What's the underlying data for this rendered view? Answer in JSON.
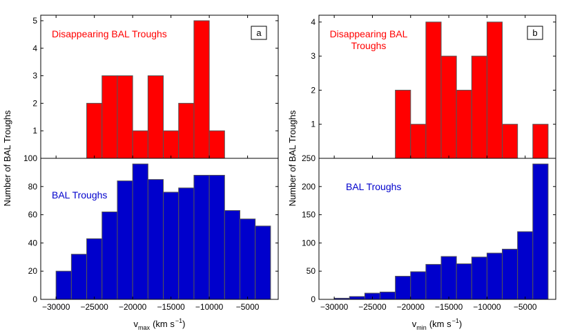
{
  "colors": {
    "top_bars": "#ff0000",
    "bottom_bars": "#0000cc",
    "top_text": "#ff0000",
    "bottom_text": "#0000cc",
    "bar_edge": "#555555"
  },
  "chart_data": [
    {
      "id": "a",
      "type": "bar",
      "panel_letter": "a",
      "bin_edges": [
        -30000,
        -28000,
        -26000,
        -24000,
        -22000,
        -20000,
        -18000,
        -16000,
        -14000,
        -12000,
        -10000,
        -8000,
        -6000,
        -4000,
        -2000
      ],
      "xlim": [
        -32000,
        -1000
      ],
      "xticks": [
        -30000,
        -25000,
        -20000,
        -15000,
        -10000,
        -5000
      ],
      "xlabel_main": "v",
      "xlabel_sub": "max",
      "xlabel_unit": "(km s",
      "xlabel_sup": "−1",
      "xlabel_close": ")",
      "ylabel": "Number of BAL Troughs",
      "top": {
        "annotation_lines": [
          "Disappearing BAL Troughs"
        ],
        "ylim": [
          0,
          5.2
        ],
        "yticks": [
          1,
          2,
          3,
          4,
          5
        ],
        "values": [
          0,
          0,
          2,
          3,
          3,
          1,
          3,
          1,
          2,
          5,
          1,
          0,
          0,
          0
        ]
      },
      "bottom": {
        "annotation_lines": [
          "BAL Troughs"
        ],
        "ylim": [
          0,
          100
        ],
        "yticks": [
          0,
          20,
          40,
          60,
          80,
          100
        ],
        "values": [
          20,
          32,
          43,
          62,
          84,
          96,
          85,
          76,
          79,
          88,
          88,
          63,
          57,
          52
        ]
      }
    },
    {
      "id": "b",
      "type": "bar",
      "panel_letter": "b",
      "bin_edges": [
        -30000,
        -28000,
        -26000,
        -24000,
        -22000,
        -20000,
        -18000,
        -16000,
        -14000,
        -12000,
        -10000,
        -8000,
        -6000,
        -4000,
        -2000
      ],
      "xlim": [
        -32000,
        -1000
      ],
      "xticks": [
        -30000,
        -25000,
        -20000,
        -15000,
        -10000,
        -5000
      ],
      "xlabel_main": "v",
      "xlabel_sub": "min",
      "xlabel_unit": "(km s",
      "xlabel_sup": "−1",
      "xlabel_close": ")",
      "ylabel": "Number of BAL Troughs",
      "top": {
        "annotation_lines": [
          "Disappearing BAL",
          "Troughs"
        ],
        "ylim": [
          0,
          4.2
        ],
        "yticks": [
          1,
          2,
          3,
          4
        ],
        "values": [
          0,
          0,
          0,
          0,
          2,
          1,
          4,
          3,
          2,
          3,
          4,
          1,
          0,
          1
        ]
      },
      "bottom": {
        "annotation_lines": [
          "BAL Troughs"
        ],
        "ylim": [
          0,
          250
        ],
        "yticks": [
          0,
          50,
          100,
          150,
          200,
          250
        ],
        "values": [
          2,
          5,
          11,
          13,
          41,
          49,
          62,
          76,
          63,
          75,
          82,
          89,
          120,
          240
        ]
      }
    }
  ]
}
